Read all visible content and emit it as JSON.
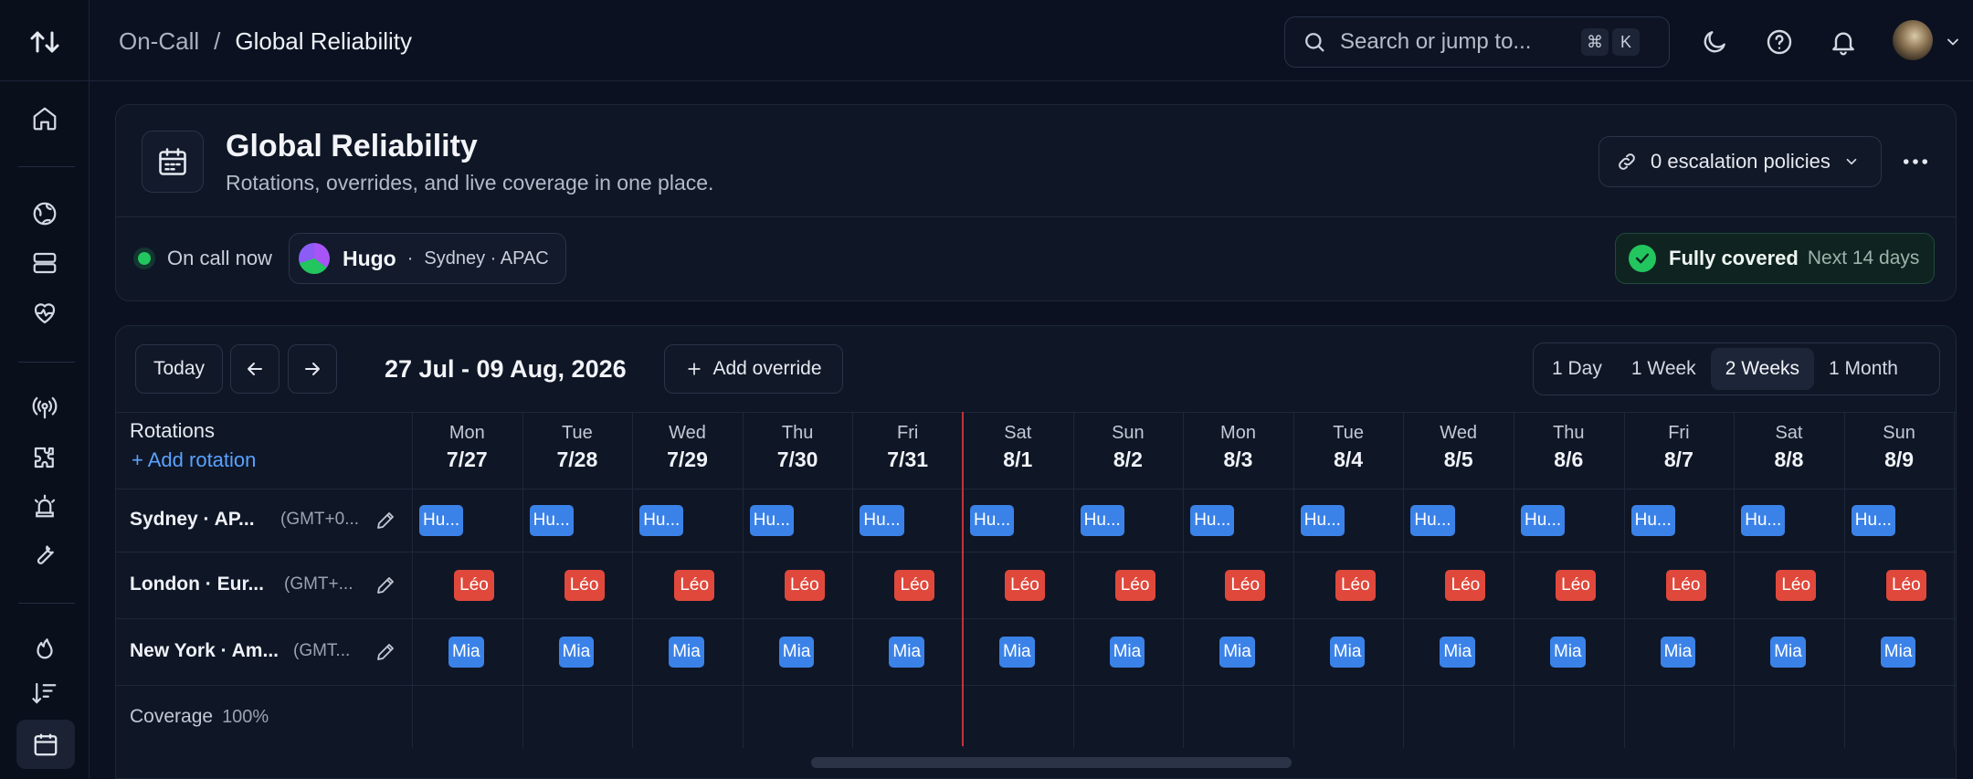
{
  "topbar": {
    "breadcrumb_parent": "On-Call",
    "breadcrumb_sep": "/",
    "breadcrumb_current": "Global Reliability",
    "search_placeholder": "Search or jump to...",
    "shortcut_keys": [
      "⌘",
      "K"
    ]
  },
  "header": {
    "title": "Global Reliability",
    "subtitle": "Rotations, overrides, and live coverage in one place.",
    "escalation_label": "0 escalation policies",
    "oncall_label": "On call now",
    "oncall_person": "Hugo",
    "oncall_dot": "·",
    "oncall_location": "Sydney · APAC",
    "coverage_status": "Fully covered",
    "coverage_window": "Next 14 days"
  },
  "toolbar": {
    "today_label": "Today",
    "date_range": "27 Jul - 09 Aug, 2026",
    "add_override_label": "Add override",
    "views": [
      "1 Day",
      "1 Week",
      "2 Weeks",
      "1 Month"
    ],
    "active_view": "2 Weeks"
  },
  "schedule": {
    "rotations_header": "Rotations",
    "add_rotation_label": "+ Add rotation",
    "days": [
      {
        "name": "Mon",
        "date": "7/27"
      },
      {
        "name": "Tue",
        "date": "7/28"
      },
      {
        "name": "Wed",
        "date": "7/29"
      },
      {
        "name": "Thu",
        "date": "7/30"
      },
      {
        "name": "Fri",
        "date": "7/31"
      },
      {
        "name": "Sat",
        "date": "8/1"
      },
      {
        "name": "Sun",
        "date": "8/2"
      },
      {
        "name": "Mon",
        "date": "8/3"
      },
      {
        "name": "Tue",
        "date": "8/4"
      },
      {
        "name": "Wed",
        "date": "8/5"
      },
      {
        "name": "Thu",
        "date": "8/6"
      },
      {
        "name": "Fri",
        "date": "8/7"
      },
      {
        "name": "Sat",
        "date": "8/8"
      },
      {
        "name": "Sun",
        "date": "8/9"
      }
    ],
    "rotations": [
      {
        "name": "Sydney · AP...",
        "tz": "(GMT+0...",
        "oncall": "Hu...",
        "color": "#3b82e8"
      },
      {
        "name": "London · Eur...",
        "tz": "(GMT+...",
        "oncall": "Léo",
        "color": "#e0483c"
      },
      {
        "name": "New York · Am...",
        "tz": "(GMT...",
        "oncall": "Mia",
        "color": "#3b82e8"
      }
    ],
    "coverage_label": "Coverage",
    "coverage_value": "100%"
  },
  "colors": {
    "background": "#0b1120",
    "accent_link": "#5aa2ff",
    "status_ok": "#22c55e",
    "today_marker": "#c5323a"
  }
}
